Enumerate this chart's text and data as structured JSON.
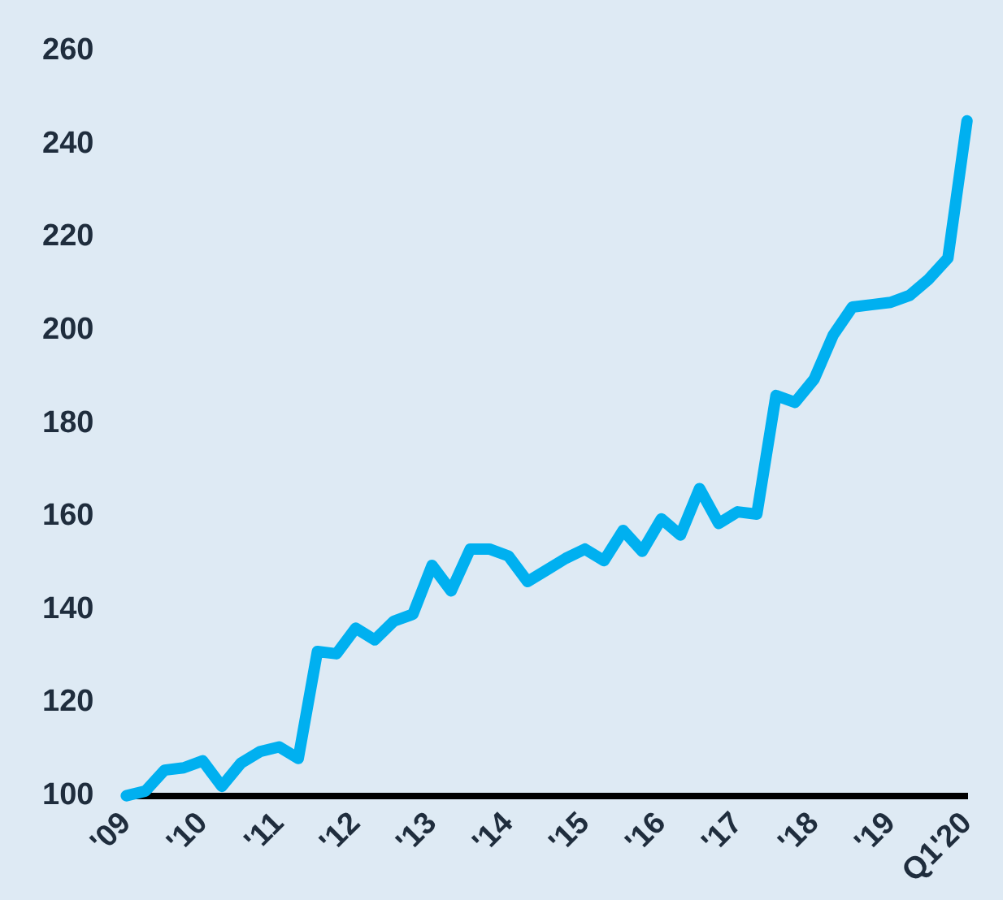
{
  "chart_data": {
    "type": "line",
    "categories": [
      "'09",
      null,
      null,
      null,
      "'10",
      null,
      null,
      null,
      "'11",
      null,
      null,
      null,
      "'12",
      null,
      null,
      null,
      "'13",
      null,
      null,
      null,
      "'14",
      null,
      null,
      null,
      "'15",
      null,
      null,
      null,
      "'16",
      null,
      null,
      null,
      "'17",
      null,
      null,
      null,
      "'18",
      null,
      null,
      null,
      "'19",
      null,
      null,
      null,
      "Q1'20"
    ],
    "series": [
      {
        "color": "#00b0f0",
        "values": [
          100,
          101,
          105.5,
          106,
          107.5,
          102,
          107,
          109.5,
          110.5,
          108,
          131,
          130.5,
          136,
          133.5,
          137.5,
          139,
          149.5,
          144,
          153,
          153,
          151.5,
          146,
          148.5,
          151,
          153,
          150.5,
          157,
          152.5,
          159.5,
          156,
          166,
          158.5,
          161,
          160.5,
          186,
          184.5,
          189.5,
          199,
          205,
          205.5,
          206,
          207.5,
          211,
          215.5,
          245
        ]
      }
    ],
    "ylim": [
      100,
      260
    ],
    "yticks": [
      100,
      120,
      140,
      160,
      180,
      200,
      220,
      240,
      260
    ],
    "grid": false,
    "legend": false,
    "marker": "none",
    "line_style": "solid"
  }
}
